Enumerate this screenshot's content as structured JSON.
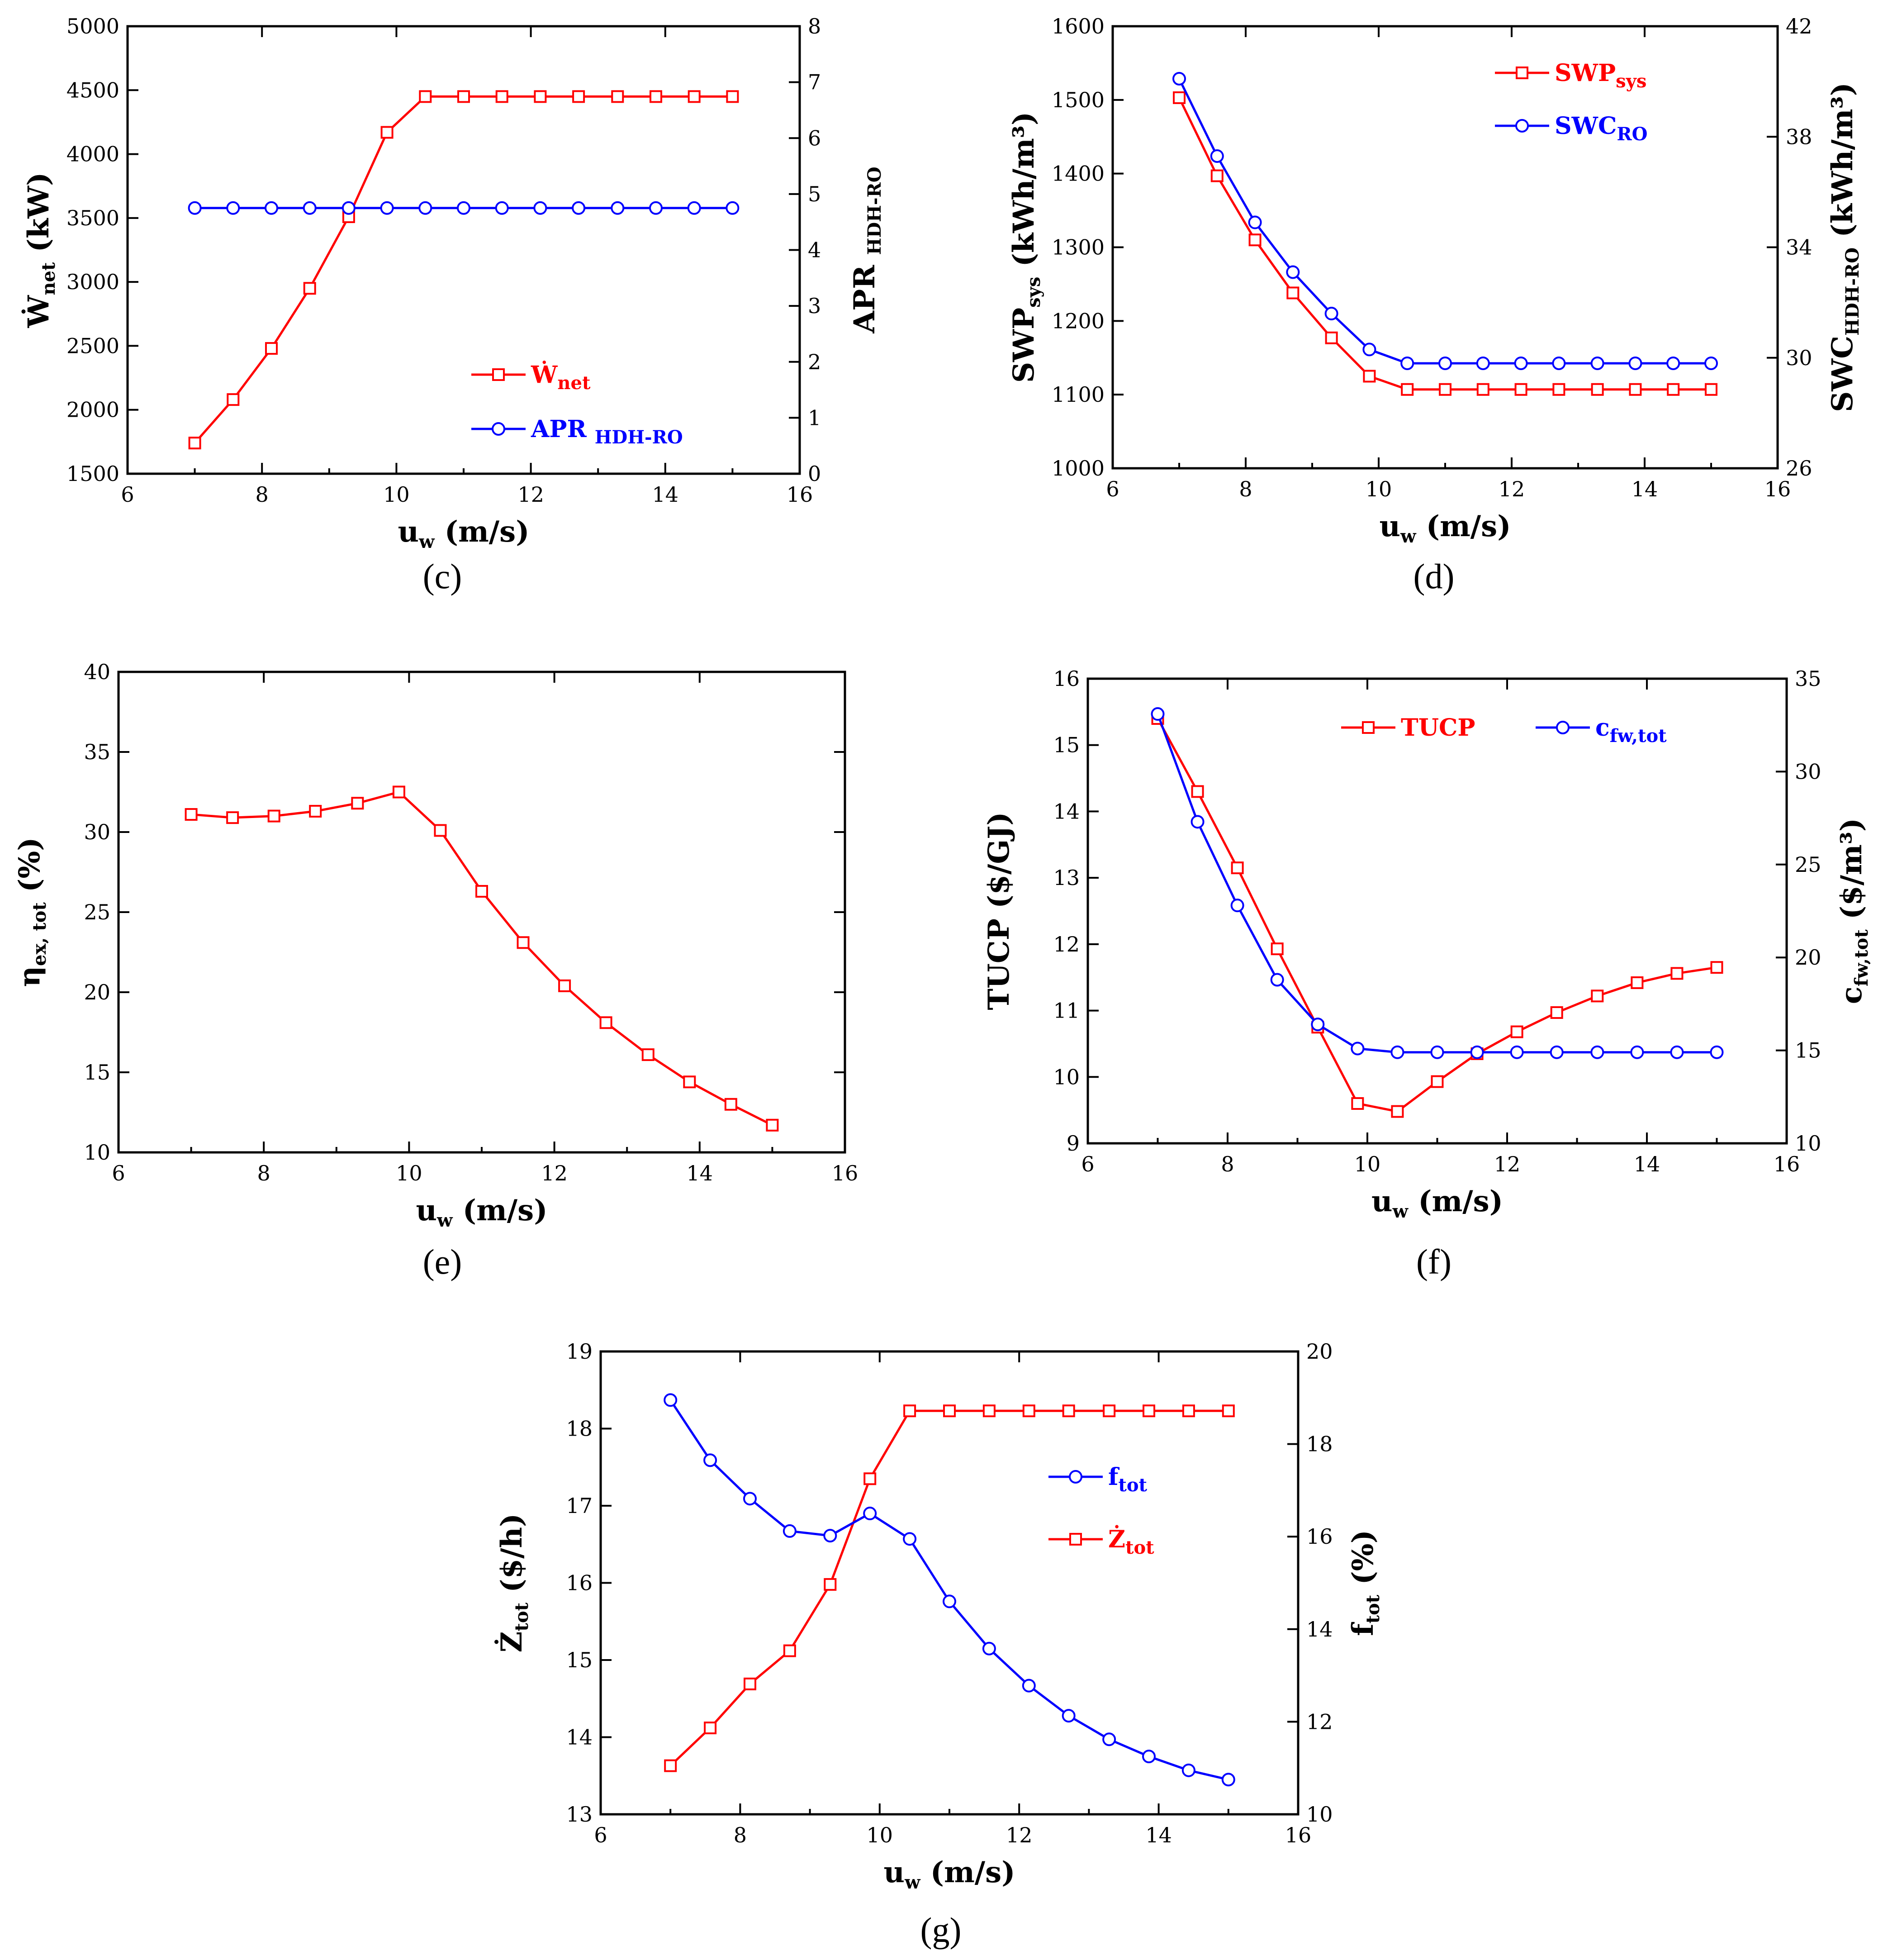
{
  "colors": {
    "red": "#ff0000",
    "blue": "#0000ff",
    "axis": "#000000"
  },
  "chart_data": [
    {
      "id": "c",
      "type": "line",
      "caption": "(c)",
      "xlabel": {
        "main": "u",
        "sub": "w",
        "rest": " (m/s)"
      },
      "ylabel": {
        "main": "Ẇ",
        "sub": "net",
        "rest": "  (kW)"
      },
      "y2label": {
        "main": "APR ",
        "sub": "HDH-RO",
        "rest": ""
      },
      "xlim": [
        6,
        16
      ],
      "xticks": [
        6,
        8,
        10,
        12,
        14,
        16
      ],
      "ylim": [
        1500,
        5000
      ],
      "yticks": [
        1500,
        2000,
        2500,
        3000,
        3500,
        4000,
        4500,
        5000
      ],
      "y2lim": [
        0,
        8
      ],
      "y2ticks": [
        0,
        1,
        2,
        3,
        4,
        5,
        6,
        7,
        8
      ],
      "legend_position": "lower-right",
      "x": [
        7,
        7.57,
        8.14,
        8.71,
        9.29,
        9.86,
        10.43,
        11,
        11.57,
        12.14,
        12.71,
        13.29,
        13.86,
        14.43,
        15
      ],
      "series": [
        {
          "name": "Ẇ",
          "name_sub": "net",
          "axis": "left",
          "color": "red",
          "marker": "square",
          "values": [
            1740,
            2080,
            2480,
            2950,
            3510,
            4170,
            4450,
            4450,
            4450,
            4450,
            4450,
            4450,
            4450,
            4450,
            4450
          ]
        },
        {
          "name": "APR ",
          "name_sub": "HDH-RO",
          "axis": "right",
          "color": "blue",
          "marker": "circle",
          "values": [
            4.75,
            4.75,
            4.75,
            4.75,
            4.75,
            4.75,
            4.75,
            4.75,
            4.75,
            4.75,
            4.75,
            4.75,
            4.75,
            4.75,
            4.75
          ]
        }
      ]
    },
    {
      "id": "d",
      "type": "line",
      "caption": "(d)",
      "xlabel": {
        "main": "u",
        "sub": "w",
        "rest": " (m/s)"
      },
      "ylabel": {
        "main": "SWP",
        "sub": "sys",
        "rest": " (kWh/m³)"
      },
      "y2label": {
        "main": "SWC",
        "sub": "HDH-RO",
        "rest": " (kWh/m³)"
      },
      "xlim": [
        6,
        16
      ],
      "xticks": [
        6,
        8,
        10,
        12,
        14,
        16
      ],
      "ylim": [
        1000,
        1600
      ],
      "yticks": [
        1000,
        1100,
        1200,
        1300,
        1400,
        1500,
        1600
      ],
      "y2lim": [
        26,
        42
      ],
      "y2ticks": [
        26,
        30,
        34,
        38,
        42
      ],
      "legend_position": "top-right",
      "x": [
        7,
        7.57,
        8.14,
        8.71,
        9.29,
        9.86,
        10.43,
        11,
        11.57,
        12.14,
        12.71,
        13.29,
        13.86,
        14.43,
        15
      ],
      "series": [
        {
          "name": "SWP",
          "name_sub": "sys",
          "axis": "left",
          "color": "red",
          "marker": "square",
          "values": [
            1503,
            1397,
            1310,
            1238,
            1177,
            1125,
            1107,
            1107,
            1107,
            1107,
            1107,
            1107,
            1107,
            1107,
            1107
          ]
        },
        {
          "name": "SWC",
          "name_sub": "RO",
          "axis": "right",
          "color": "blue",
          "marker": "circle",
          "values": [
            40.1,
            37.3,
            34.9,
            33.1,
            31.6,
            30.3,
            29.8,
            29.8,
            29.8,
            29.8,
            29.8,
            29.8,
            29.8,
            29.8,
            29.8
          ]
        }
      ]
    },
    {
      "id": "e",
      "type": "line",
      "caption": "(e)",
      "xlabel": {
        "main": "u",
        "sub": "w",
        "rest": " (m/s)"
      },
      "ylabel": {
        "main": "η",
        "sub": "ex, tot",
        "rest": " (%)"
      },
      "y2label": null,
      "xlim": [
        6,
        16
      ],
      "xticks": [
        6,
        8,
        10,
        12,
        14,
        16
      ],
      "ylim": [
        10,
        40
      ],
      "yticks": [
        10,
        15,
        20,
        25,
        30,
        35,
        40
      ],
      "legend_position": "none",
      "x": [
        7,
        7.57,
        8.14,
        8.71,
        9.29,
        9.86,
        10.43,
        11,
        11.57,
        12.14,
        12.71,
        13.29,
        13.86,
        14.43,
        15
      ],
      "series": [
        {
          "name": "η",
          "name_sub": "ex, tot",
          "axis": "left",
          "color": "red",
          "marker": "square",
          "values": [
            31.1,
            30.9,
            31.0,
            31.3,
            31.8,
            32.5,
            30.1,
            26.3,
            23.1,
            20.4,
            18.1,
            16.1,
            14.4,
            13.0,
            11.7
          ]
        }
      ]
    },
    {
      "id": "f",
      "type": "line",
      "caption": "(f)",
      "xlabel": {
        "main": "u",
        "sub": "w",
        "rest": " (m/s)"
      },
      "ylabel": {
        "main": "TUCP ($/GJ)",
        "sub": "",
        "rest": ""
      },
      "y2label": {
        "main": "c",
        "sub": "fw,tot",
        "rest": " ($/m³)"
      },
      "xlim": [
        6,
        16
      ],
      "xticks": [
        6,
        8,
        10,
        12,
        14,
        16
      ],
      "ylim": [
        9,
        16
      ],
      "yticks": [
        9,
        10,
        11,
        12,
        13,
        14,
        15,
        16
      ],
      "y2lim": [
        10,
        35
      ],
      "y2ticks": [
        10,
        15,
        20,
        25,
        30,
        35
      ],
      "legend_position": "top-right",
      "x": [
        7,
        7.57,
        8.14,
        8.71,
        9.29,
        9.86,
        10.43,
        11,
        11.57,
        12.14,
        12.71,
        13.29,
        13.86,
        14.43,
        15
      ],
      "series": [
        {
          "name": "TUCP",
          "name_sub": "",
          "axis": "left",
          "color": "red",
          "marker": "square",
          "values": [
            15.4,
            14.3,
            13.15,
            11.93,
            10.75,
            9.6,
            9.48,
            9.93,
            10.35,
            10.68,
            10.97,
            11.22,
            11.42,
            11.56,
            11.65
          ]
        },
        {
          "name": "c",
          "name_sub": "fw,tot",
          "axis": "right",
          "color": "blue",
          "marker": "circle",
          "values": [
            33.1,
            27.3,
            22.8,
            18.8,
            16.4,
            15.1,
            14.9,
            14.9,
            14.9,
            14.9,
            14.9,
            14.9,
            14.9,
            14.9,
            14.9
          ]
        }
      ]
    },
    {
      "id": "g",
      "type": "line",
      "caption": "(g)",
      "xlabel": {
        "main": "u",
        "sub": "w",
        "rest": " (m/s)"
      },
      "ylabel": {
        "main": "Ż",
        "sub": "tot",
        "rest": "  ($/h)"
      },
      "y2label": {
        "main": "f",
        "sub": "tot",
        "rest": " (%)"
      },
      "xlim": [
        6,
        16
      ],
      "xticks": [
        6,
        8,
        10,
        12,
        14,
        16
      ],
      "ylim": [
        13,
        19
      ],
      "yticks": [
        13,
        14,
        15,
        16,
        17,
        18,
        19
      ],
      "y2lim": [
        10,
        20
      ],
      "y2ticks": [
        10,
        12,
        14,
        16,
        18,
        20
      ],
      "legend_position": "top-right",
      "legend_order": [
        1,
        0
      ],
      "x": [
        7,
        7.57,
        8.14,
        8.71,
        9.29,
        9.86,
        10.43,
        11,
        11.57,
        12.14,
        12.71,
        13.29,
        13.86,
        14.43,
        15
      ],
      "series": [
        {
          "name": "Ż",
          "name_sub": "tot",
          "axis": "left",
          "color": "red",
          "marker": "square",
          "values": [
            13.63,
            14.12,
            14.69,
            15.12,
            15.98,
            17.35,
            18.23,
            18.23,
            18.23,
            18.23,
            18.23,
            18.23,
            18.23,
            18.23,
            18.23
          ]
        },
        {
          "name": "f",
          "name_sub": "tot",
          "axis": "right",
          "color": "blue",
          "marker": "circle",
          "values": [
            18.95,
            17.65,
            16.82,
            16.12,
            16.02,
            16.5,
            15.95,
            14.6,
            13.58,
            12.78,
            12.13,
            11.62,
            11.25,
            10.95,
            10.75
          ]
        }
      ]
    }
  ]
}
